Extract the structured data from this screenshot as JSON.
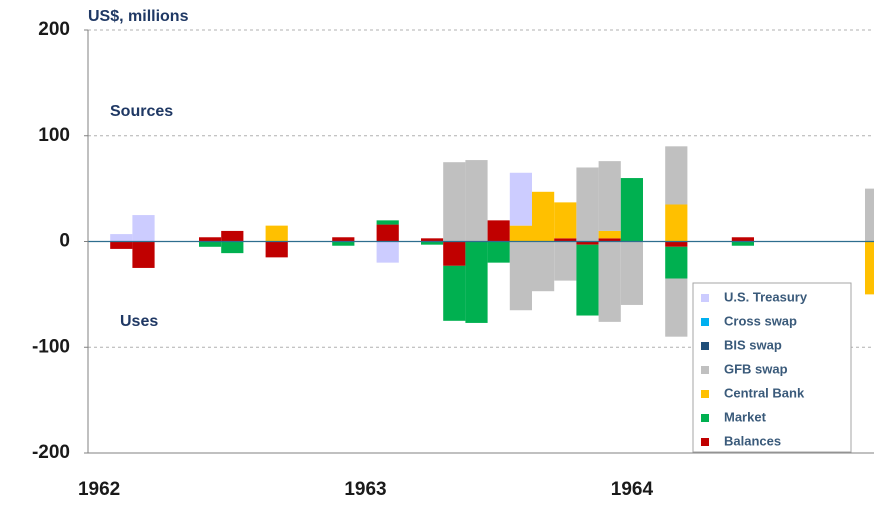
{
  "chart_data": {
    "type": "bar",
    "ylabel": "US$, millions",
    "annotations": [
      "Sources",
      "Uses"
    ],
    "categories": [
      "1962",
      null,
      null,
      null,
      null,
      null,
      null,
      null,
      null,
      null,
      null,
      null,
      "1963",
      null,
      null,
      null,
      null,
      null,
      null,
      null,
      null,
      null,
      null,
      null,
      "1964",
      null,
      null,
      null,
      null,
      null,
      null,
      null,
      null,
      null,
      null,
      null
    ],
    "ylim": [
      -200,
      200
    ],
    "yticks": [
      200,
      100,
      0,
      -100,
      -200
    ],
    "grid": true,
    "legend": "bottom-right",
    "series": [
      {
        "name": "U.S. Treasury",
        "color": "#ccccff",
        "sources": [
          null,
          7,
          25,
          null,
          null,
          null,
          null,
          null,
          null,
          null,
          null,
          null,
          null,
          null,
          null,
          null,
          null,
          null,
          null,
          50,
          null,
          null,
          null,
          null,
          null,
          null,
          null,
          null,
          null,
          null,
          null,
          null,
          null,
          null,
          null,
          null
        ],
        "uses": [
          null,
          null,
          null,
          null,
          null,
          null,
          null,
          null,
          null,
          null,
          null,
          null,
          null,
          -20,
          null,
          null,
          null,
          null,
          null,
          null,
          null,
          null,
          null,
          null,
          null,
          null,
          null,
          null,
          null,
          null,
          null,
          null,
          null,
          null,
          null,
          null
        ]
      },
      {
        "name": "Cross swap",
        "color": "#00b0f0",
        "sources": [
          null,
          null,
          null,
          null,
          null,
          null,
          null,
          null,
          null,
          null,
          null,
          null,
          null,
          null,
          null,
          null,
          null,
          null,
          null,
          null,
          null,
          null,
          null,
          null,
          null,
          null,
          null,
          null,
          null,
          null,
          null,
          null,
          null,
          null,
          null,
          null
        ],
        "uses": [
          null,
          null,
          null,
          null,
          null,
          null,
          null,
          null,
          null,
          null,
          null,
          null,
          null,
          null,
          null,
          null,
          null,
          null,
          null,
          null,
          null,
          null,
          null,
          null,
          null,
          null,
          null,
          null,
          null,
          null,
          null,
          null,
          null,
          null,
          null,
          null
        ]
      },
      {
        "name": "BIS swap",
        "color": "#1f4e79",
        "sources": [
          null,
          null,
          null,
          null,
          null,
          null,
          null,
          null,
          null,
          null,
          null,
          null,
          null,
          null,
          null,
          null,
          null,
          null,
          null,
          null,
          null,
          null,
          null,
          null,
          null,
          null,
          null,
          null,
          null,
          null,
          null,
          null,
          null,
          null,
          null,
          null
        ],
        "uses": [
          null,
          null,
          null,
          null,
          null,
          null,
          null,
          null,
          null,
          null,
          null,
          null,
          null,
          null,
          null,
          null,
          null,
          null,
          null,
          null,
          null,
          null,
          null,
          null,
          null,
          null,
          null,
          null,
          null,
          null,
          null,
          null,
          null,
          null,
          null,
          null
        ]
      },
      {
        "name": "GFB swap",
        "color": "#c0c0c0",
        "sources": [
          null,
          null,
          null,
          null,
          null,
          null,
          null,
          null,
          null,
          null,
          null,
          null,
          null,
          null,
          null,
          null,
          75,
          77,
          null,
          null,
          null,
          null,
          70,
          66,
          null,
          null,
          55,
          null,
          null,
          null,
          null,
          null,
          null,
          null,
          null,
          50
        ],
        "uses": [
          null,
          null,
          null,
          null,
          null,
          null,
          null,
          null,
          null,
          null,
          null,
          null,
          null,
          null,
          null,
          null,
          null,
          null,
          null,
          -65,
          -47,
          -37,
          null,
          -76,
          -60,
          null,
          -55,
          null,
          null,
          null,
          null,
          null,
          null,
          null,
          null,
          null
        ]
      },
      {
        "name": "Central Bank",
        "color": "#ffc000",
        "sources": [
          null,
          null,
          null,
          null,
          null,
          null,
          null,
          null,
          15,
          null,
          null,
          null,
          null,
          null,
          null,
          null,
          null,
          null,
          null,
          15,
          47,
          34,
          null,
          7,
          null,
          null,
          35,
          null,
          null,
          null,
          null,
          null,
          null,
          null,
          null,
          null
        ],
        "uses": [
          null,
          null,
          null,
          null,
          null,
          null,
          null,
          null,
          null,
          null,
          null,
          null,
          null,
          null,
          null,
          null,
          null,
          null,
          null,
          null,
          null,
          null,
          null,
          null,
          null,
          null,
          null,
          null,
          null,
          null,
          null,
          null,
          null,
          null,
          null,
          -50
        ]
      },
      {
        "name": "Market",
        "color": "#00b050",
        "sources": [
          null,
          null,
          null,
          null,
          null,
          null,
          null,
          null,
          null,
          null,
          null,
          null,
          null,
          4,
          null,
          null,
          null,
          null,
          null,
          null,
          null,
          null,
          null,
          null,
          60,
          null,
          null,
          null,
          null,
          null,
          null,
          null,
          null,
          null,
          null,
          null
        ],
        "uses": [
          null,
          null,
          null,
          null,
          null,
          -5,
          -11,
          null,
          null,
          null,
          null,
          -4,
          null,
          null,
          null,
          -3,
          -52,
          -77,
          -20,
          null,
          null,
          null,
          -67,
          null,
          null,
          null,
          -30,
          null,
          null,
          -4,
          null,
          null,
          null,
          null,
          null,
          null
        ]
      },
      {
        "name": "Balances",
        "color": "#c00000",
        "sources": [
          null,
          null,
          null,
          null,
          null,
          4,
          10,
          null,
          null,
          null,
          null,
          4,
          null,
          16,
          null,
          3,
          null,
          null,
          20,
          null,
          null,
          3,
          null,
          3,
          null,
          null,
          null,
          null,
          null,
          4,
          null,
          null,
          null,
          null,
          null,
          null
        ],
        "uses": [
          null,
          -7,
          -25,
          null,
          null,
          null,
          null,
          null,
          -15,
          null,
          null,
          null,
          null,
          null,
          null,
          null,
          -23,
          null,
          null,
          null,
          null,
          null,
          -3,
          null,
          null,
          null,
          -5,
          null,
          null,
          null,
          null,
          null,
          null,
          null,
          null,
          null
        ]
      }
    ]
  }
}
